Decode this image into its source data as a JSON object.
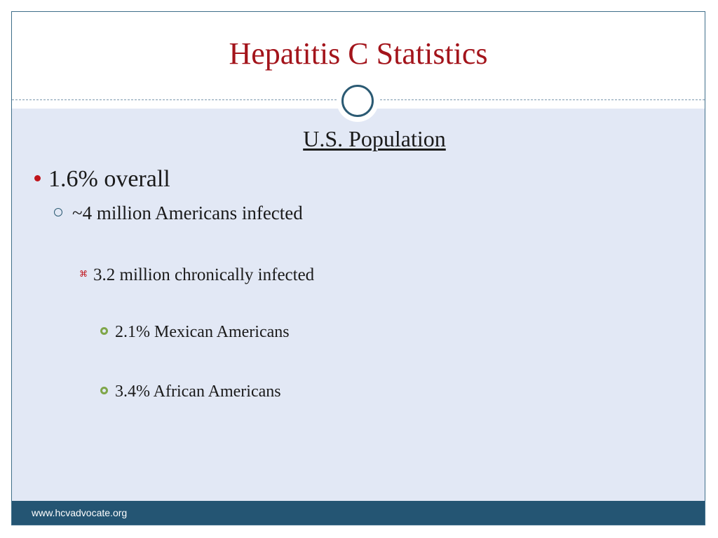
{
  "slide": {
    "title": "Hepatitis C Statistics",
    "subtitle": "U.S. Population",
    "bullets": [
      {
        "level": 1,
        "marker": "red-dot-bullet-icon",
        "text": "1.6% overall"
      },
      {
        "level": 2,
        "marker": "hollow-circle-bullet-icon",
        "text": "~4 million Americans infected"
      },
      {
        "level": 3,
        "marker": "red-x-bullet-icon",
        "text": "3.2 million chronically infected"
      },
      {
        "level": 4,
        "marker": "green-ring-bullet-icon",
        "text": "2.1%  Mexican Americans"
      },
      {
        "level": 4,
        "marker": "green-ring-bullet-icon",
        "text": "3.4% African Americans"
      }
    ],
    "footer": "www.hcvadvocate.org"
  },
  "colors": {
    "title": "#a3141b",
    "content_bg": "#e2e8f5",
    "footer_bg": "#245573",
    "accent_red": "#c0141b",
    "accent_green": "#7fa64a",
    "accent_blue": "#2b5a73"
  },
  "icons": {
    "divider_ring": "circle-ring-icon",
    "x_marker_glyph": "⌘"
  }
}
